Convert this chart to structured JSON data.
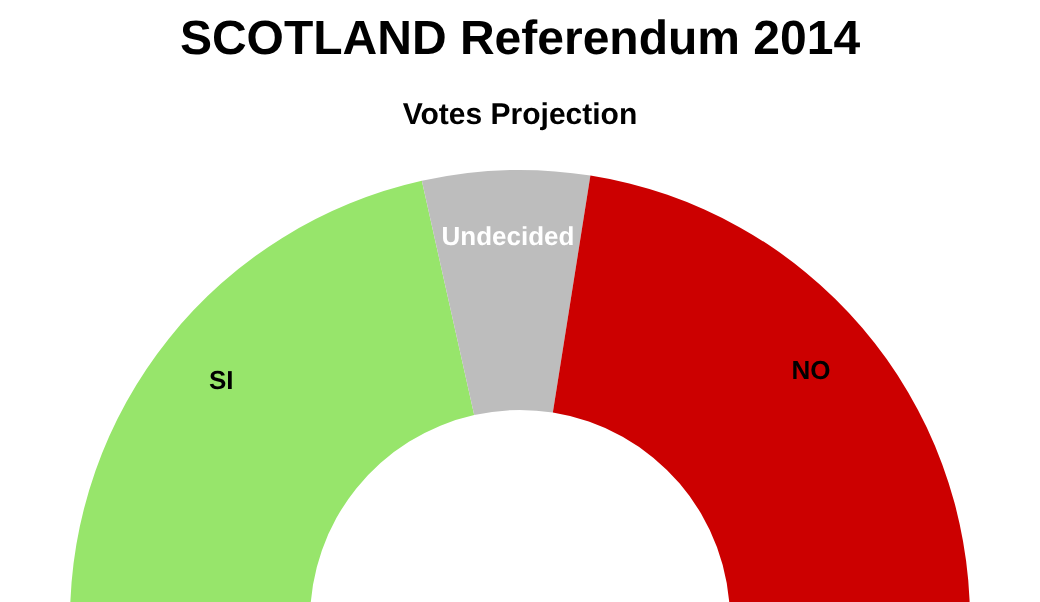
{
  "chart_data": {
    "type": "donut",
    "title": "SCOTLAND Referendum 2014",
    "subtitle": "Votes Projection",
    "categories": [
      "SI",
      "Undecided",
      "NO"
    ],
    "values": [
      43,
      12,
      45
    ],
    "colors": [
      "#97e56b",
      "#bdbdbd",
      "#cc0000"
    ],
    "legend": false
  }
}
